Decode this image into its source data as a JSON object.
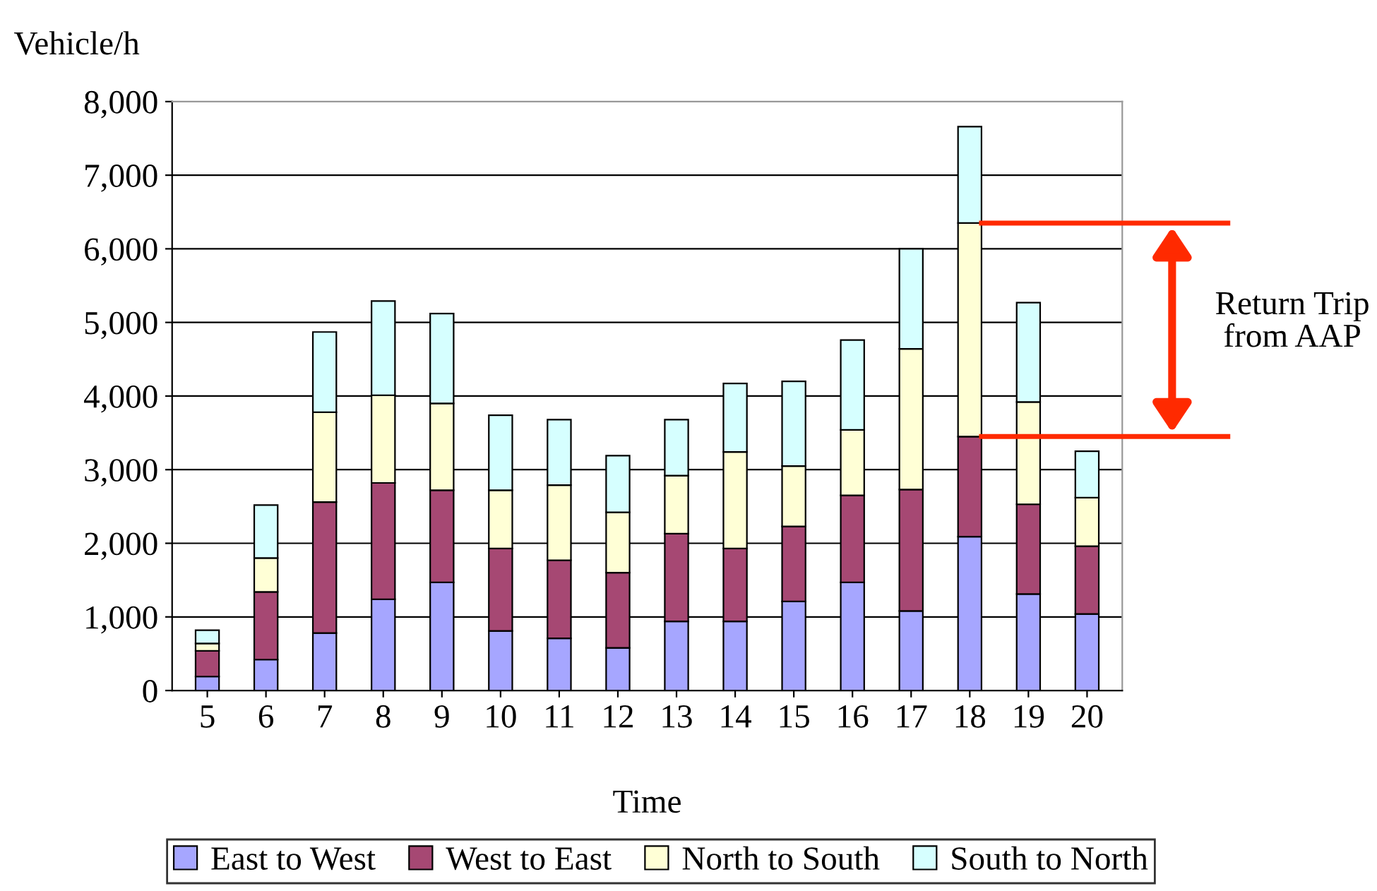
{
  "chart_data": {
    "type": "bar",
    "stacked": true,
    "xlabel": "Time",
    "ylabel": "Vehicle/h",
    "categories": [
      "5",
      "6",
      "7",
      "8",
      "9",
      "10",
      "11",
      "12",
      "13",
      "14",
      "15",
      "16",
      "17",
      "18",
      "19",
      "20"
    ],
    "series": [
      {
        "name": "East to West",
        "color": "#a6a6ff",
        "values": [
          190,
          420,
          780,
          1240,
          1470,
          810,
          710,
          580,
          940,
          940,
          1210,
          1470,
          1080,
          2090,
          1310,
          1040
        ]
      },
      {
        "name": "West to East",
        "color": "#a64873",
        "values": [
          350,
          920,
          1780,
          1580,
          1250,
          1120,
          1060,
          1020,
          1190,
          990,
          1020,
          1180,
          1650,
          1360,
          1220,
          920
        ]
      },
      {
        "name": "North to South",
        "color": "#ffffd6",
        "values": [
          100,
          460,
          1220,
          1190,
          1180,
          790,
          1020,
          820,
          790,
          1310,
          820,
          890,
          1910,
          2900,
          1390,
          660
        ]
      },
      {
        "name": "South to North",
        "color": "#d6ffff",
        "values": [
          180,
          720,
          1090,
          1280,
          1220,
          1020,
          890,
          770,
          760,
          930,
          1150,
          1220,
          1360,
          1310,
          1350,
          630
        ]
      }
    ],
    "ylim": [
      0,
      8000
    ],
    "yticks": [
      0,
      {
        "value": 1000,
        "label": "1,000"
      },
      {
        "value": 2000,
        "label": "2,000"
      },
      {
        "value": 3000,
        "label": "3,000"
      },
      {
        "value": 4000,
        "label": "4,000"
      },
      {
        "value": 5000,
        "label": "5,000"
      },
      {
        "value": 6000,
        "label": "6,000"
      },
      {
        "value": 7000,
        "label": "7,000"
      },
      {
        "value": 8000,
        "label": "8,000"
      }
    ],
    "grid": "y",
    "legend": "bottom",
    "ref_lines": [
      {
        "axis": "y",
        "value": 6350,
        "color": "#ff2a00"
      },
      {
        "axis": "y",
        "value": 3450,
        "color": "#ff2a00"
      }
    ],
    "annotations": [
      "Return Trip\nfrom AAP"
    ]
  }
}
